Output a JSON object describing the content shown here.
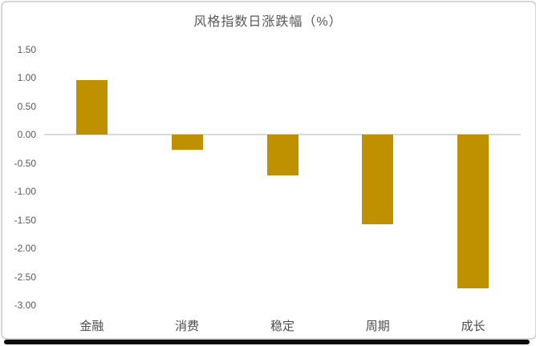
{
  "chart_data": {
    "type": "bar",
    "title": "风格指数日涨跌幅（%）",
    "categories": [
      "金融",
      "消费",
      "稳定",
      "周期",
      "成长"
    ],
    "values": [
      0.97,
      -0.27,
      -0.72,
      -1.58,
      -2.7
    ],
    "yticks": [
      "1.50",
      "1.00",
      "0.50",
      "0.00",
      "-0.50",
      "-1.00",
      "-1.50",
      "-2.00",
      "-2.50",
      "-3.00"
    ],
    "ylim": [
      -3.0,
      1.5
    ],
    "xlabel": "",
    "ylabel": "",
    "legend": "none",
    "grid": "zero-baseline-only",
    "bar_color": "#BF9000",
    "zero_line_color": "#D9D9D9",
    "title_color": "#595959",
    "tick_color": "#595959",
    "category_label_color": "#4D4D4D"
  }
}
